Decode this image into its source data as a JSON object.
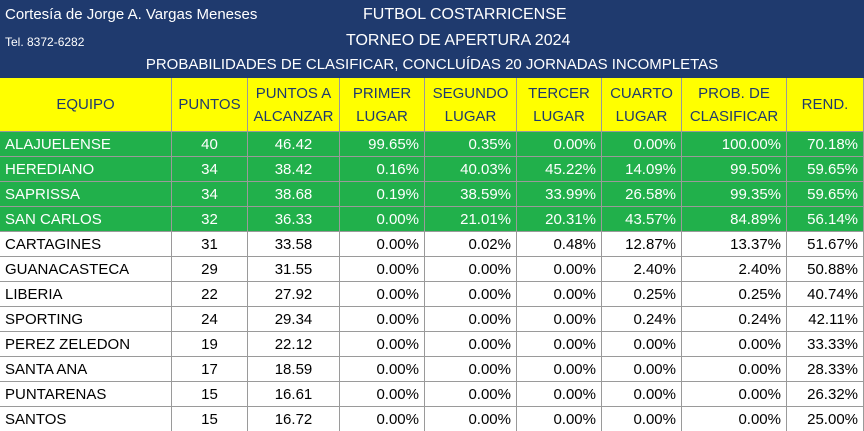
{
  "header": {
    "credit": "Cortesía de Jorge A. Vargas Meneses",
    "phone": "Tel. 8372-6282",
    "title": "FUTBOL COSTARRICENSE",
    "subtitle": "TORNEO DE APERTURA 2024",
    "caption": "PROBABILIDADES DE CLASIFICAR, CONCLUÍDAS 20 JORNADAS INCOMPLETAS"
  },
  "table": {
    "columns": [
      [
        "EQUIPO"
      ],
      [
        "PUNTOS"
      ],
      [
        "PUNTOS A",
        "ALCANZAR"
      ],
      [
        "PRIMER",
        "LUGAR"
      ],
      [
        "SEGUNDO",
        "LUGAR"
      ],
      [
        "TERCER",
        "LUGAR"
      ],
      [
        "CUARTO",
        "LUGAR"
      ],
      [
        "PROB. DE",
        "CLASIFICAR"
      ],
      [
        "REND."
      ]
    ],
    "rows": [
      [
        "ALAJUELENSE",
        "40",
        "46.42",
        "99.65%",
        "0.35%",
        "0.00%",
        "0.00%",
        "100.00%",
        "70.18%"
      ],
      [
        "HEREDIANO",
        "34",
        "38.42",
        "0.16%",
        "40.03%",
        "45.22%",
        "14.09%",
        "99.50%",
        "59.65%"
      ],
      [
        "SAPRISSA",
        "34",
        "38.68",
        "0.19%",
        "38.59%",
        "33.99%",
        "26.58%",
        "99.35%",
        "59.65%"
      ],
      [
        "SAN CARLOS",
        "32",
        "36.33",
        "0.00%",
        "21.01%",
        "20.31%",
        "43.57%",
        "84.89%",
        "56.14%"
      ],
      [
        "CARTAGINES",
        "31",
        "33.58",
        "0.00%",
        "0.02%",
        "0.48%",
        "12.87%",
        "13.37%",
        "51.67%"
      ],
      [
        "GUANACASTECA",
        "29",
        "31.55",
        "0.00%",
        "0.00%",
        "0.00%",
        "2.40%",
        "2.40%",
        "50.88%"
      ],
      [
        "LIBERIA",
        "22",
        "27.92",
        "0.00%",
        "0.00%",
        "0.00%",
        "0.25%",
        "0.25%",
        "40.74%"
      ],
      [
        "SPORTING",
        "24",
        "29.34",
        "0.00%",
        "0.00%",
        "0.00%",
        "0.24%",
        "0.24%",
        "42.11%"
      ],
      [
        "PEREZ ZELEDON",
        "19",
        "22.12",
        "0.00%",
        "0.00%",
        "0.00%",
        "0.00%",
        "0.00%",
        "33.33%"
      ],
      [
        "SANTA ANA",
        "17",
        "18.59",
        "0.00%",
        "0.00%",
        "0.00%",
        "0.00%",
        "0.00%",
        "28.33%"
      ],
      [
        "PUNTARENAS",
        "15",
        "16.61",
        "0.00%",
        "0.00%",
        "0.00%",
        "0.00%",
        "0.00%",
        "26.32%"
      ],
      [
        "SANTOS",
        "15",
        "16.72",
        "0.00%",
        "0.00%",
        "0.00%",
        "0.00%",
        "0.00%",
        "25.00%"
      ]
    ]
  }
}
